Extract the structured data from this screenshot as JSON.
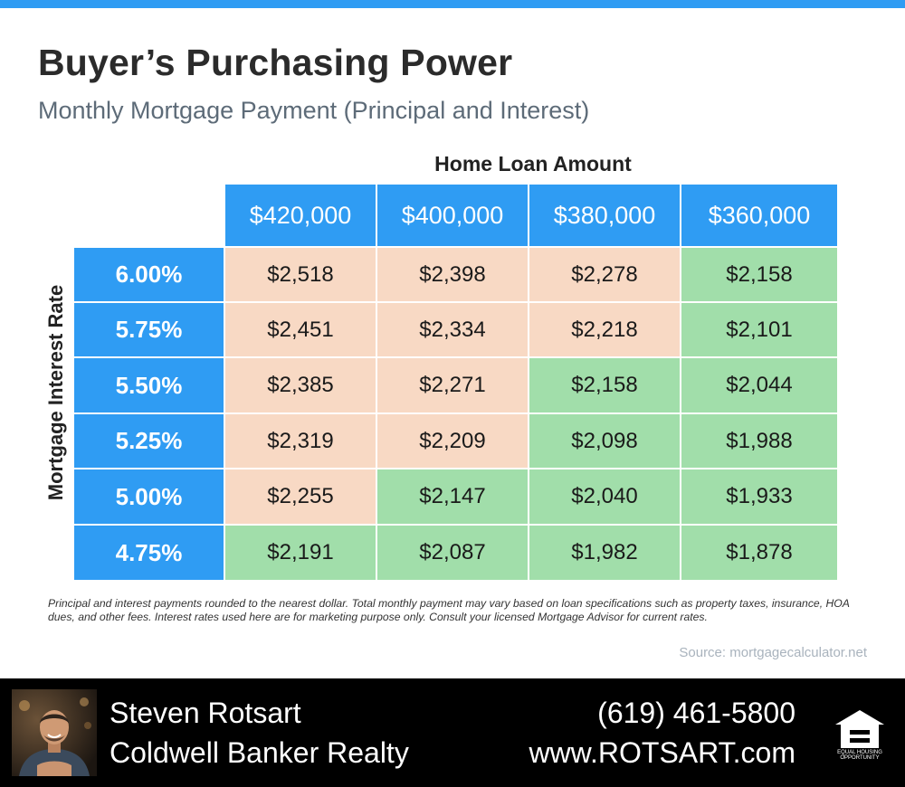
{
  "title": "Buyer’s Purchasing Power",
  "subtitle": "Monthly Mortgage Payment (Principal and Interest)",
  "table": {
    "column_group_label": "Home Loan Amount",
    "row_group_label": "Mortgage Interest Rate",
    "loan_amounts": [
      "$420,000",
      "$400,000",
      "$380,000",
      "$360,000"
    ],
    "rows": [
      {
        "rate": "6.00%",
        "payments": [
          "$2,518",
          "$2,398",
          "$2,278",
          "$2,158"
        ],
        "highlight": [
          "peach",
          "peach",
          "peach",
          "green"
        ]
      },
      {
        "rate": "5.75%",
        "payments": [
          "$2,451",
          "$2,334",
          "$2,218",
          "$2,101"
        ],
        "highlight": [
          "peach",
          "peach",
          "peach",
          "green"
        ]
      },
      {
        "rate": "5.50%",
        "payments": [
          "$2,385",
          "$2,271",
          "$2,158",
          "$2,044"
        ],
        "highlight": [
          "peach",
          "peach",
          "green",
          "green"
        ]
      },
      {
        "rate": "5.25%",
        "payments": [
          "$2,319",
          "$2,209",
          "$2,098",
          "$1,988"
        ],
        "highlight": [
          "peach",
          "peach",
          "green",
          "green"
        ]
      },
      {
        "rate": "5.00%",
        "payments": [
          "$2,255",
          "$2,147",
          "$2,040",
          "$1,933"
        ],
        "highlight": [
          "peach",
          "green",
          "green",
          "green"
        ]
      },
      {
        "rate": "4.75%",
        "payments": [
          "$2,191",
          "$2,087",
          "$1,982",
          "$1,878"
        ],
        "highlight": [
          "green",
          "green",
          "green",
          "green"
        ]
      }
    ]
  },
  "disclaimer": "Principal and interest payments rounded to the nearest dollar. Total monthly payment may vary based on loan specifications such as property taxes, insurance, HOA dues, and other fees. Interest rates used here are for marketing purpose only. Consult your licensed Mortgage Advisor for current rates.",
  "source": "Source: mortgagecalculator.net",
  "footer": {
    "agent_name": "Steven Rotsart",
    "company": "Coldwell Banker Realty",
    "phone": "(619) 461-5800",
    "website": "www.ROTSART.com",
    "logo_text": "EQUAL HOUSING OPPORTUNITY",
    "logo_icon": "equal-housing-icon"
  },
  "colors": {
    "accent_blue": "#2f9cf3",
    "peach": "#f8d9c4",
    "green": "#a1deaa",
    "footer_bg": "#000000"
  }
}
